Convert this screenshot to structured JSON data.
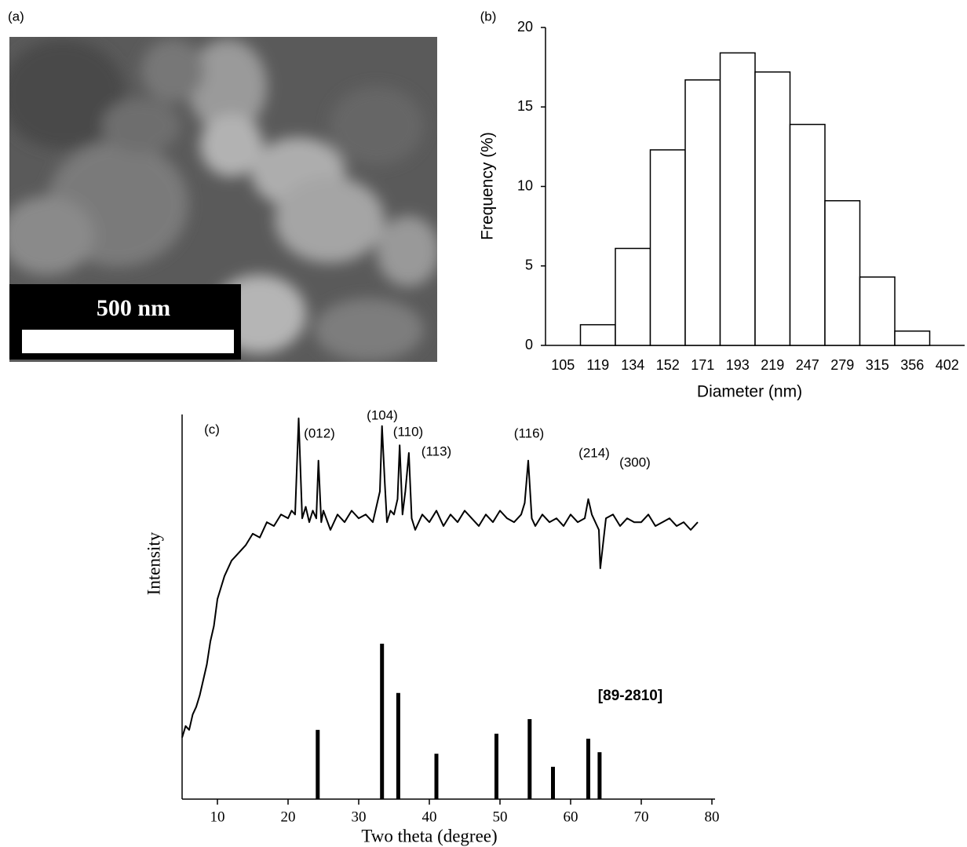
{
  "image_panel": {
    "label": "(a)",
    "scale_bar": "500 nm"
  },
  "chart_data": [
    {
      "type": "bar",
      "label": "(b)",
      "ylabel": "Frequency (%)",
      "xlabel": "Diameter (nm)",
      "categories": [
        "105",
        "119",
        "134",
        "152",
        "171",
        "193",
        "219",
        "247",
        "279",
        "315",
        "356",
        "402"
      ],
      "values": [
        0,
        1.3,
        6.1,
        12.3,
        16.7,
        18.4,
        17.2,
        13.9,
        9.1,
        4.3,
        0.9,
        0
      ],
      "color": "#ffffff",
      "ylim": [
        0,
        20
      ],
      "yticks": [
        0,
        5,
        10,
        15,
        20
      ]
    },
    {
      "type": "line",
      "label": "(c)",
      "xlabel": "Two theta (degree)",
      "ylabel": "Intensity",
      "xlim": [
        5,
        80
      ],
      "ylim": [
        0,
        100
      ],
      "xticks": [
        10,
        20,
        30,
        40,
        50,
        60,
        70,
        80
      ],
      "series": [
        {
          "type": "line",
          "color": "#000000",
          "x": [
            5,
            5.5,
            6,
            6.5,
            7,
            7.5,
            8,
            8.5,
            9,
            9.5,
            10,
            10.5,
            11,
            12,
            13,
            14,
            15,
            16,
            17,
            18,
            19,
            20,
            20.5,
            21,
            21.5,
            22,
            22.5,
            23,
            23.5,
            24,
            24.3,
            24.7,
            25,
            26,
            27,
            28,
            29,
            30,
            31,
            32,
            32.5,
            33,
            33.3,
            33.7,
            34,
            34.5,
            35,
            35.5,
            35.8,
            36.2,
            36.6,
            37.1,
            37.5,
            38,
            39,
            40,
            41,
            42,
            43,
            44,
            45,
            46,
            47,
            48,
            49,
            50,
            51,
            52,
            53,
            53.5,
            54,
            54.5,
            55,
            56,
            57,
            58,
            59,
            60,
            61,
            62,
            62.5,
            63,
            64,
            64.2,
            65,
            66,
            67,
            68,
            69,
            70,
            71,
            72,
            73,
            74,
            75,
            76,
            77,
            78
          ],
          "values": [
            16,
            19,
            18,
            22,
            24,
            27,
            31,
            35,
            41,
            45,
            52,
            55,
            58,
            62,
            64,
            66,
            69,
            68,
            72,
            71,
            74,
            73,
            75,
            74,
            99,
            73,
            76,
            72,
            75,
            73,
            88,
            72,
            75,
            70,
            74,
            72,
            75,
            73,
            74,
            72,
            76,
            80,
            97,
            82,
            72,
            75,
            74,
            78,
            92,
            74,
            80,
            90,
            73,
            70,
            74,
            72,
            75,
            71,
            74,
            72,
            75,
            73,
            71,
            74,
            72,
            75,
            73,
            72,
            74,
            77,
            88,
            73,
            71,
            74,
            72,
            73,
            71,
            74,
            72,
            73,
            78,
            74,
            70,
            60,
            73,
            74,
            71,
            73,
            72,
            72,
            74,
            71,
            72,
            73,
            71,
            72,
            70,
            72
          ]
        },
        {
          "type": "stick",
          "color": "#000000",
          "name": "[89-2810]",
          "x": [
            24.2,
            33.3,
            35.6,
            41.0,
            49.5,
            54.2,
            57.5,
            62.5,
            64.1
          ],
          "values": [
            18,
            40.4,
            27.6,
            11.8,
            17,
            20.8,
            8.4,
            15.7,
            12.2
          ]
        }
      ],
      "annotations": [
        "(012)",
        "(104)",
        "(110)",
        "(113)",
        "(116)",
        "(214)",
        "(300)"
      ]
    }
  ]
}
